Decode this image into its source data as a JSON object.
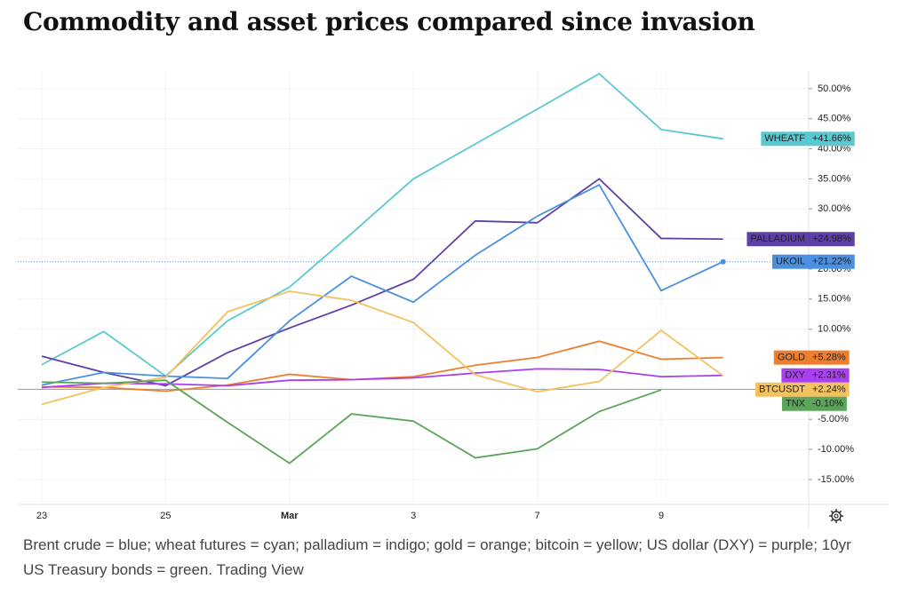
{
  "chart_data": {
    "type": "line",
    "title": "Commodity and asset prices compared since invasion",
    "caption": "Brent crude = blue; wheat futures = cyan; palladium = indigo; gold = orange; bitcoin = yellow; US dollar (DXY) = purple; 10yr US Treasury bonds = green. Trading View",
    "categories": [
      "23",
      null,
      "25",
      null,
      "Mar",
      null,
      "3",
      null,
      "7",
      null,
      "9",
      null
    ],
    "ylim": [
      -19,
      55
    ],
    "yticks": [
      {
        "value": 50,
        "label": "50.00%"
      },
      {
        "value": 45,
        "label": "45.00%"
      },
      {
        "value": 40,
        "label": "40.00%"
      },
      {
        "value": 35,
        "label": "35.00%"
      },
      {
        "value": 30,
        "label": "30.00%"
      },
      {
        "value": 25,
        "label": "25.00%"
      },
      {
        "value": 20,
        "label": "20.00%"
      },
      {
        "value": 15,
        "label": "15.00%"
      },
      {
        "value": 10,
        "label": "10.00%"
      },
      {
        "value": -5,
        "label": "-5.00%"
      },
      {
        "value": -10,
        "label": "-10.00%"
      },
      {
        "value": -15,
        "label": "-15.00%"
      }
    ],
    "grid": true,
    "series": [
      {
        "name": "WHEATF",
        "color": "#5bc8d0",
        "values": [
          4.1,
          9.6,
          2.2,
          11.4,
          17,
          25.9,
          35,
          40.8,
          46.6,
          52.5,
          43.2,
          41.66
        ],
        "value_labels": [
          null,
          null,
          null,
          null,
          null,
          null,
          null,
          null,
          null,
          null,
          null,
          "+41.66%"
        ]
      },
      {
        "name": "PALLADIUM",
        "color": "#5e3fa6",
        "values": [
          5.5,
          2.8,
          0.6,
          6.1,
          10.2,
          14,
          18.3,
          28,
          27.7,
          35,
          25.1,
          24.98
        ],
        "value_labels": [
          null,
          null,
          null,
          null,
          null,
          null,
          null,
          null,
          null,
          null,
          null,
          "+24.98%"
        ]
      },
      {
        "name": "UKOIL",
        "color": "#4a90e2",
        "values": [
          0.7,
          2.8,
          2.2,
          1.8,
          11.4,
          18.8,
          14.5,
          22.3,
          28.8,
          34,
          16.4,
          21.22
        ],
        "value_labels": [
          null,
          null,
          null,
          null,
          null,
          null,
          null,
          null,
          null,
          null,
          null,
          "+21.22%"
        ]
      },
      {
        "name": "GOLD",
        "color": "#ef7d2e",
        "values": [
          0.4,
          0.3,
          -0.3,
          0.7,
          2.5,
          1.6,
          2.1,
          4,
          5.3,
          8,
          5,
          5.28
        ],
        "value_labels": [
          null,
          null,
          null,
          null,
          null,
          null,
          null,
          null,
          null,
          null,
          null,
          "+5.28%"
        ]
      },
      {
        "name": "DXY",
        "color": "#a93ff0",
        "values": [
          0.3,
          1,
          0.9,
          0.6,
          1.5,
          1.6,
          1.9,
          2.7,
          3.4,
          3.3,
          2.1,
          2.31
        ],
        "value_labels": [
          null,
          null,
          null,
          null,
          null,
          null,
          null,
          null,
          null,
          null,
          null,
          "+2.31%"
        ]
      },
      {
        "name": "BTCUSDT",
        "color": "#f5c15c",
        "values": [
          -2.5,
          0.3,
          2,
          12.9,
          16.3,
          14.8,
          11.1,
          2.4,
          -0.4,
          1.3,
          9.8,
          2.24
        ],
        "value_labels": [
          null,
          null,
          null,
          null,
          null,
          null,
          null,
          null,
          null,
          null,
          null,
          "+2.24%"
        ]
      },
      {
        "name": "TNX",
        "color": "#5aa55a",
        "values": [
          1.2,
          1,
          1.5,
          -5.5,
          -12.3,
          -4.1,
          -5.3,
          -11.4,
          -9.9,
          -3.7,
          -0.1,
          null
        ],
        "value_labels": [
          null,
          null,
          null,
          null,
          null,
          null,
          null,
          null,
          null,
          null,
          "-0.10%",
          null
        ]
      }
    ]
  }
}
